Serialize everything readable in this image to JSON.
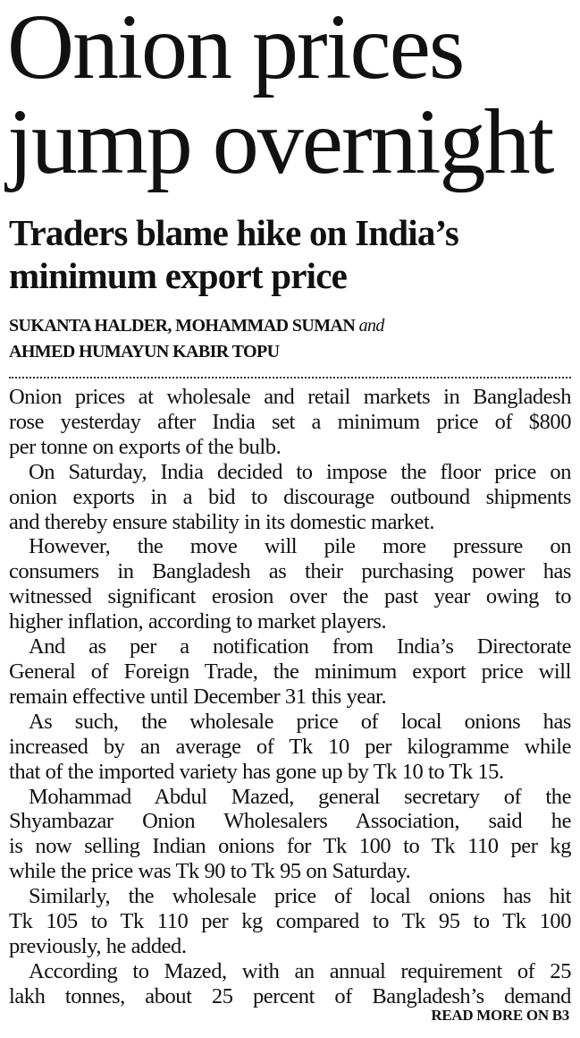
{
  "headline": [
    "Onion prices",
    "jump overnight"
  ],
  "subhead": [
    "Traders blame hike on India’s",
    "minimum export price"
  ],
  "byline": {
    "line1": "SUKANTA HALDER, MOHAMMAD SUMAN",
    "and": "and",
    "line2": "AHMED HUMAYUN KABIR TOPU"
  },
  "paragraphs": [
    [
      "Onion prices at wholesale and retail markets in Bangladesh",
      "rose yesterday after India set a minimum price of $800",
      "per tonne on exports of the bulb."
    ],
    [
      "On Saturday, India decided to impose the floor price on",
      "onion exports in a bid to discourage outbound shipments",
      "and thereby ensure stability in its domestic market."
    ],
    [
      "However, the move will pile more pressure on",
      "consumers in Bangladesh as their purchasing power has",
      "witnessed significant erosion over the past year owing to",
      "higher inflation, according to market players."
    ],
    [
      "And as per a notification from India’s Directorate",
      "General of Foreign Trade, the minimum export price will",
      "remain effective until December 31 this year."
    ],
    [
      "As such, the wholesale price of local onions has",
      "increased by an average of Tk 10 per kilogramme while",
      "that of the imported variety has gone up by Tk 10 to Tk 15."
    ],
    [
      "Mohammad Abdul Mazed, general secretary of the",
      "Shyambazar Onion Wholesalers Association, said he",
      "is now selling Indian onions for Tk 100 to Tk 110 per kg",
      "while the price was Tk 90 to Tk 95 on Saturday."
    ],
    [
      "Similarly, the wholesale price of local onions has hit",
      "Tk 105 to Tk 110 per kg compared to Tk 95 to Tk 100",
      "previously, he added."
    ],
    [
      "According to Mazed, with an annual requirement of 25",
      "lakh tonnes, about 25 percent of Bangladesh’s demand"
    ]
  ],
  "read_more": "READ MORE ON B3"
}
